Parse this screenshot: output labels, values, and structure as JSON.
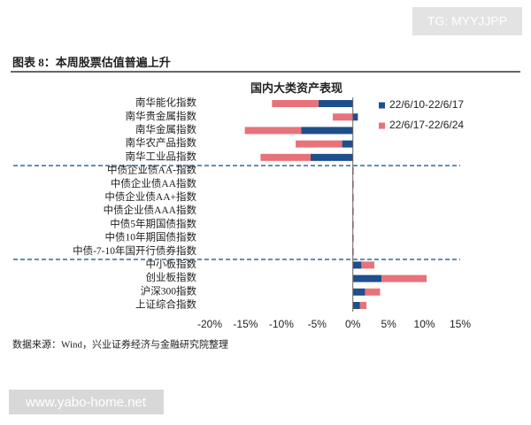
{
  "page": {
    "watermark_top": "TG: MYYJJPP",
    "figure_title": "图表 8：本周股票估值普遍上升",
    "source": "数据来源：Wind，兴业证券经济与金融研究院整理",
    "watermark_bottom": "www.yabo-home.net"
  },
  "chart_data": {
    "type": "stacked-barh",
    "title": "国内大类资产表现",
    "categories": [
      "南华能化指数",
      "南华贵金属指数",
      "南华金属指数",
      "南华农产品指数",
      "南华工业品指数",
      "中债企业债AA-指数",
      "中债企业债AA指数",
      "中债企业债AA+指数",
      "中债企业债AAA指数",
      "中债5年期国债指数",
      "中债10年期国债指数",
      "中债-7-10年国开行债券指数",
      "中小板指数",
      "创业板指数",
      "沪深300指数",
      "上证综合指数"
    ],
    "series": [
      {
        "name": "22/6/10-22/6/17",
        "color": "#1f4e8c",
        "values": [
          -4.8,
          0.7,
          -7.2,
          -1.5,
          -5.9,
          0.1,
          0.1,
          0.1,
          0.1,
          0.1,
          0.1,
          0.1,
          1.2,
          4.0,
          1.7,
          1.0
        ]
      },
      {
        "name": "22/6/17-22/6/24",
        "color": "#e8727a",
        "values": [
          -6.5,
          -2.8,
          -7.9,
          -6.5,
          -7.0,
          -0.1,
          -0.1,
          -0.1,
          -0.1,
          -0.1,
          -0.1,
          -0.1,
          1.8,
          6.3,
          2.1,
          0.9
        ]
      }
    ],
    "xlim": [
      -20,
      15
    ],
    "xticks": [
      {
        "value": -20,
        "label": "-20%"
      },
      {
        "value": -15,
        "label": "-15%"
      },
      {
        "value": -10,
        "label": "-10%"
      },
      {
        "value": -5,
        "label": "-5%"
      },
      {
        "value": 0,
        "label": "0%"
      },
      {
        "value": 5,
        "label": "5%"
      },
      {
        "value": 10,
        "label": "10%"
      },
      {
        "value": 15,
        "label": "15%"
      }
    ],
    "legend": "right"
  }
}
